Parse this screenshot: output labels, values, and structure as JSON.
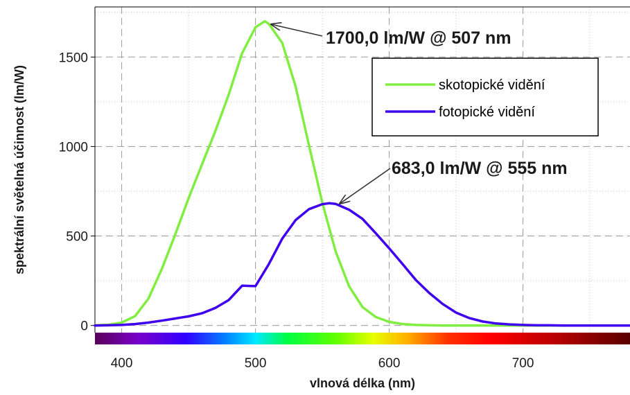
{
  "chart_data": {
    "type": "line",
    "title": "",
    "xlabel": "vlnová délka (nm)",
    "ylabel": "spektrální světelná účinnost (lm/W)",
    "xlim": [
      380,
      780
    ],
    "ylim": [
      -40,
      1780
    ],
    "xticks": [
      400,
      500,
      600,
      700
    ],
    "yticks": [
      0,
      500,
      1000,
      1500
    ],
    "x_tick_labels": [
      "400",
      "500",
      "600",
      "700"
    ],
    "y_tick_labels": [
      "0",
      "500",
      "1000",
      "1500"
    ],
    "grid": true,
    "legend_position": "top-right",
    "colorbar": "visible spectrum (violet to dark red) along the x axis",
    "series": [
      {
        "name": "skotopické vidění",
        "color": "#80ee40",
        "x": [
          380,
          390,
          400,
          410,
          420,
          430,
          440,
          450,
          460,
          470,
          480,
          490,
          500,
          507,
          510,
          520,
          530,
          540,
          550,
          560,
          570,
          580,
          590,
          600,
          610,
          620,
          630,
          640,
          650,
          660,
          670,
          680,
          690,
          700,
          710,
          720,
          730,
          740,
          750,
          760,
          770,
          780
        ],
        "y": [
          1,
          4,
          16,
          52,
          150,
          316,
          508,
          711,
          900,
          1086,
          1290,
          1521,
          1666,
          1700,
          1685,
          1579,
          1336,
          1007,
          685,
          412,
          219,
          103,
          47,
          20,
          8,
          3,
          1,
          0,
          0,
          0,
          0,
          0,
          0,
          0,
          0,
          0,
          0,
          0,
          0,
          0,
          0,
          0
        ]
      },
      {
        "name": "fotopické vidění",
        "color": "#3e00ee",
        "x": [
          380,
          390,
          400,
          410,
          420,
          430,
          440,
          450,
          460,
          470,
          480,
          490,
          500,
          510,
          520,
          530,
          540,
          550,
          555,
          560,
          570,
          580,
          590,
          600,
          610,
          620,
          630,
          640,
          650,
          660,
          670,
          680,
          690,
          700,
          710,
          720,
          730,
          740,
          750,
          760,
          770,
          780
        ],
        "y": [
          0,
          1,
          3,
          8,
          16,
          27,
          39,
          51,
          68,
          98,
          142,
          222,
          220,
          343,
          485,
          589,
          650,
          678,
          683,
          679,
          647,
          596,
          515,
          431,
          343,
          253,
          181,
          120,
          72,
          41,
          22,
          11,
          6,
          3,
          1,
          1,
          0,
          0,
          0,
          0,
          0,
          0
        ]
      }
    ],
    "annotations": [
      {
        "text": "1700,0 lm/W @ 507 nm",
        "x": 507,
        "y": 1700
      },
      {
        "text": "683,0 lm/W @ 555 nm",
        "x": 555,
        "y": 683
      }
    ]
  }
}
